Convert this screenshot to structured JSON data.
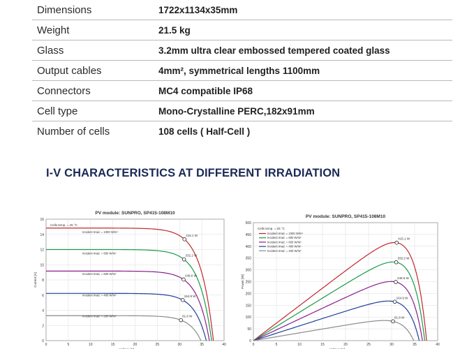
{
  "specs": [
    {
      "label": "Dimensions",
      "value": "1722x1134x35mm"
    },
    {
      "label": "Weight",
      "value": "21.5 kg"
    },
    {
      "label": "Glass",
      "value": "3.2mm ultra clear embossed tempered coated glass"
    },
    {
      "label": "Output cables",
      "value": "4mm², symmetrical lengths 1100mm"
    },
    {
      "label": "Connectors",
      "value": "MC4 compatible IP68"
    },
    {
      "label": "Cell type",
      "value": "Mono-Crystalline PERC,182x91mm"
    },
    {
      "label": "Number of cells",
      "value": "108 cells ( Half-Cell )"
    }
  ],
  "section_title": "I-V CHARACTERISTICS AT DIFFERENT IRRADIATION",
  "chart_data": [
    {
      "type": "line",
      "title": "PV module:  SUNPRO,  SP415-108M10",
      "xlabel": "Voltage [V]",
      "ylabel": "Current [A]",
      "xlim": [
        0,
        40
      ],
      "ylim": [
        0,
        16
      ],
      "xticks": [
        0,
        5,
        10,
        15,
        20,
        25,
        30,
        35,
        40
      ],
      "yticks": [
        0,
        2,
        4,
        6,
        8,
        10,
        12,
        14,
        16
      ],
      "annotation": "Cells temp. = 25 °C",
      "grid": true,
      "series": [
        {
          "name": "Incident Irrad. = 1000 W/m²",
          "color": "#c0282d",
          "isc": 13.9,
          "voc": 37.6,
          "mpp": [
            31.1,
            13.35
          ],
          "label": "415.1 W"
        },
        {
          "name": "Incident Irrad. = 800 W/m²",
          "color": "#1a9a4a",
          "isc": 11.1,
          "voc": 37.2,
          "mpp": [
            31.0,
            10.7
          ],
          "label": "332.2 W"
        },
        {
          "name": "Incident Irrad. = 600 W/m²",
          "color": "#8a1f8c",
          "isc": 8.35,
          "voc": 36.7,
          "mpp": [
            30.9,
            8.05
          ],
          "label": "248.6 W"
        },
        {
          "name": "Incident Irrad. = 400 W/m²",
          "color": "#1f3f9a",
          "isc": 5.55,
          "voc": 36.0,
          "mpp": [
            30.7,
            5.35
          ],
          "label": "164.9 W"
        },
        {
          "name": "Incident Irrad. = 200 W/m²",
          "color": "#8a8a8a",
          "isc": 2.8,
          "voc": 34.8,
          "mpp": [
            30.3,
            2.7
          ],
          "label": "81.8 W"
        }
      ]
    },
    {
      "type": "line",
      "title": "PV module:  SUNPRO,  SP415-108M10",
      "xlabel": "Voltage [V]",
      "ylabel": "Power [W]",
      "xlim": [
        0,
        40
      ],
      "ylim": [
        0,
        500
      ],
      "xticks": [
        0,
        5,
        10,
        15,
        20,
        25,
        30,
        35,
        40
      ],
      "yticks": [
        0,
        50,
        100,
        150,
        200,
        250,
        300,
        350,
        400,
        450,
        500
      ],
      "annotation": "Cells temp. = 25 °C",
      "grid": true,
      "series": [
        {
          "name": "Incident Irrad. = 1000 W/m²",
          "color": "#c0282d",
          "isc": 13.9,
          "voc": 37.6,
          "mpp": [
            31.1,
            415.1
          ],
          "label": "415.1 W"
        },
        {
          "name": "Incident Irrad. = 800 W/m²",
          "color": "#1a9a4a",
          "isc": 11.1,
          "voc": 37.2,
          "mpp": [
            31.0,
            332.2
          ],
          "label": "332.2 W"
        },
        {
          "name": "Incident Irrad. = 600 W/m²",
          "color": "#8a1f8c",
          "isc": 8.35,
          "voc": 36.7,
          "mpp": [
            30.9,
            248.6
          ],
          "label": "248.6 W"
        },
        {
          "name": "Incident Irrad. = 400 W/m²",
          "color": "#1f3f9a",
          "isc": 5.55,
          "voc": 36.0,
          "mpp": [
            30.7,
            164.9
          ],
          "label": "164.9 W"
        },
        {
          "name": "Incident Irrad. = 200 W/m²",
          "color": "#8a8a8a",
          "isc": 2.8,
          "voc": 34.8,
          "mpp": [
            30.3,
            81.8
          ],
          "label": "81.8 W"
        }
      ]
    }
  ]
}
